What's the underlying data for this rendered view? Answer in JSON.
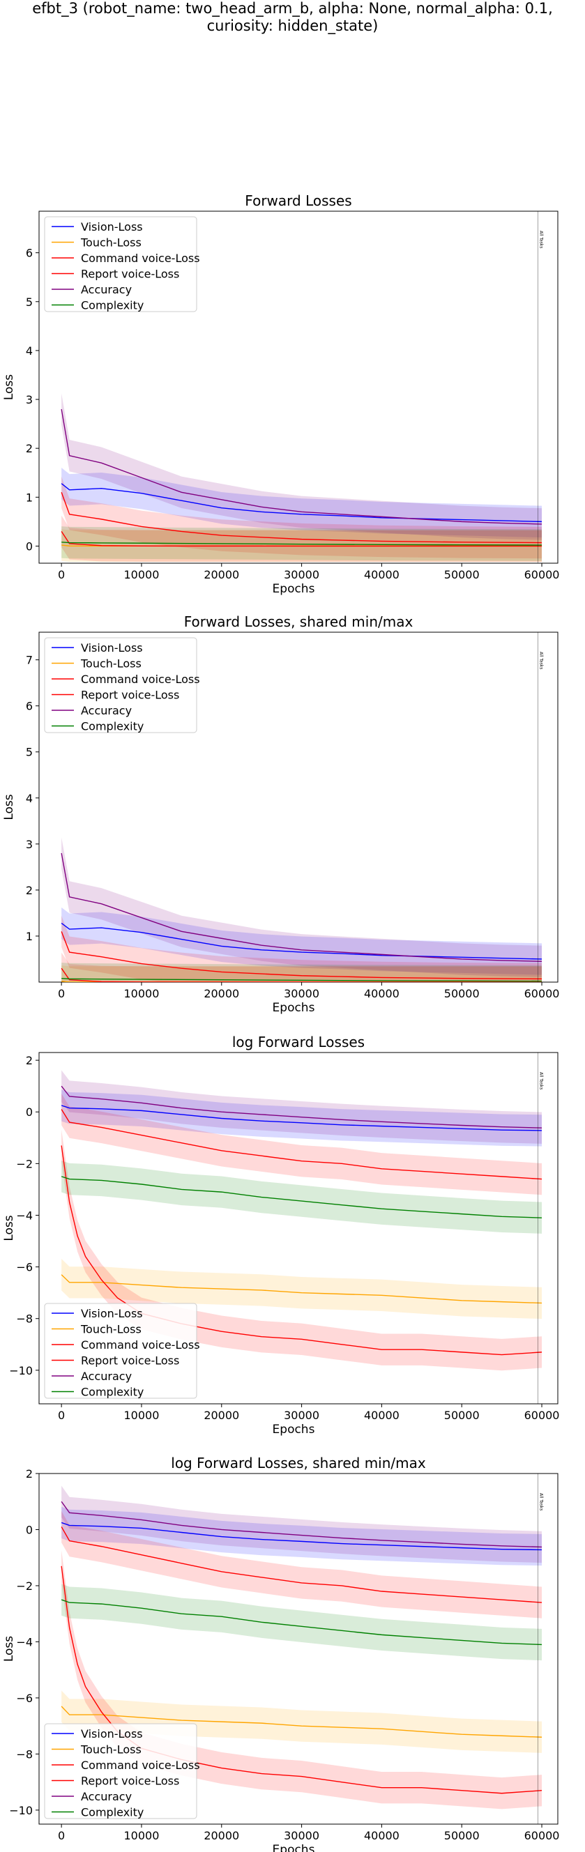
{
  "suptitle": {
    "line1": "efbt_3 (robot_name: two_head_arm_b, alpha: None, normal_alpha: 0.1,",
    "line2": "curiosity: hidden_state)"
  },
  "colors": {
    "Vision-Loss": "#0000ff",
    "Touch-Loss": "#ffa500",
    "Command voice-Loss": "#ff0000",
    "Report voice-Loss": "#ff0000",
    "Accuracy": "#800080",
    "Complexity": "#008000"
  },
  "chart_data": [
    {
      "type": "line",
      "title": "Forward Losses",
      "xlabel": "Epochs",
      "ylabel": "Loss",
      "xlim": [
        -2800,
        62000
      ],
      "ylim": [
        -0.35,
        6.85
      ],
      "xticks": [
        0,
        10000,
        20000,
        30000,
        40000,
        50000,
        60000
      ],
      "yticks": [
        0,
        1,
        2,
        3,
        4,
        5,
        6
      ],
      "legend": "upper-left",
      "vline": {
        "x": 59500,
        "label": "All Tasks"
      },
      "series": [
        {
          "name": "Vision-Loss",
          "x": [
            0,
            1000,
            5000,
            10000,
            15000,
            20000,
            25000,
            30000,
            35000,
            40000,
            45000,
            50000,
            55000,
            60000
          ],
          "y": [
            1.28,
            1.15,
            1.18,
            1.08,
            0.93,
            0.78,
            0.7,
            0.65,
            0.62,
            0.58,
            0.56,
            0.54,
            0.52,
            0.5
          ]
        },
        {
          "name": "Touch-Loss",
          "x": [
            0,
            1000,
            5000,
            10000,
            20000,
            30000,
            40000,
            50000,
            60000
          ],
          "y": [
            0.02,
            0.003,
            0.002,
            0.002,
            0.002,
            0.001,
            0.001,
            0.001,
            0.001
          ]
        },
        {
          "name": "Command voice-Loss",
          "x": [
            0,
            1000,
            5000,
            10000,
            15000,
            20000,
            25000,
            30000,
            35000,
            40000,
            45000,
            50000,
            55000,
            60000
          ],
          "y": [
            0.3,
            0.05,
            0.01,
            0.003,
            0.001,
            0.001,
            0.001,
            0.0002,
            0.0002,
            0.0001,
            0.0001,
            0.0001,
            0.0001,
            0.0001
          ]
        },
        {
          "name": "Report voice-Loss",
          "x": [
            0,
            1000,
            5000,
            10000,
            15000,
            20000,
            25000,
            30000,
            35000,
            40000,
            45000,
            50000,
            55000,
            60000
          ],
          "y": [
            1.1,
            0.65,
            0.55,
            0.4,
            0.3,
            0.22,
            0.18,
            0.14,
            0.12,
            0.1,
            0.09,
            0.08,
            0.075,
            0.07
          ]
        },
        {
          "name": "Accuracy",
          "x": [
            0,
            1000,
            5000,
            10000,
            15000,
            20000,
            25000,
            30000,
            35000,
            40000,
            45000,
            50000,
            55000,
            60000
          ],
          "y": [
            2.8,
            1.85,
            1.7,
            1.4,
            1.1,
            0.95,
            0.8,
            0.7,
            0.65,
            0.6,
            0.55,
            0.5,
            0.47,
            0.45
          ]
        },
        {
          "name": "Complexity",
          "x": [
            0,
            1000,
            5000,
            10000,
            20000,
            30000,
            40000,
            50000,
            60000
          ],
          "y": [
            0.08,
            0.07,
            0.065,
            0.06,
            0.05,
            0.04,
            0.03,
            0.025,
            0.02
          ]
        }
      ]
    },
    {
      "type": "line",
      "title": "Forward Losses, shared min/max",
      "xlabel": "Epochs",
      "ylabel": "Loss",
      "xlim": [
        -2800,
        62000
      ],
      "ylim": [
        0.0,
        7.6
      ],
      "xticks": [
        0,
        10000,
        20000,
        30000,
        40000,
        50000,
        60000
      ],
      "yticks": [
        1,
        2,
        3,
        4,
        5,
        6,
        7
      ],
      "legend": "upper-left",
      "vline": {
        "x": 59500,
        "label": "All Tasks"
      },
      "series": [
        {
          "name": "Vision-Loss",
          "x": [
            0,
            1000,
            5000,
            10000,
            15000,
            20000,
            25000,
            30000,
            35000,
            40000,
            45000,
            50000,
            55000,
            60000
          ],
          "y": [
            1.28,
            1.15,
            1.18,
            1.08,
            0.93,
            0.78,
            0.7,
            0.65,
            0.62,
            0.58,
            0.56,
            0.54,
            0.52,
            0.5
          ]
        },
        {
          "name": "Touch-Loss",
          "x": [
            0,
            1000,
            5000,
            10000,
            20000,
            30000,
            40000,
            50000,
            60000
          ],
          "y": [
            0.02,
            0.003,
            0.002,
            0.002,
            0.002,
            0.001,
            0.001,
            0.001,
            0.001
          ]
        },
        {
          "name": "Command voice-Loss",
          "x": [
            0,
            1000,
            5000,
            10000,
            15000,
            20000,
            25000,
            30000,
            35000,
            40000,
            45000,
            50000,
            55000,
            60000
          ],
          "y": [
            0.3,
            0.05,
            0.01,
            0.003,
            0.001,
            0.001,
            0.001,
            0.0002,
            0.0002,
            0.0001,
            0.0001,
            0.0001,
            0.0001,
            0.0001
          ]
        },
        {
          "name": "Report voice-Loss",
          "x": [
            0,
            1000,
            5000,
            10000,
            15000,
            20000,
            25000,
            30000,
            35000,
            40000,
            45000,
            50000,
            55000,
            60000
          ],
          "y": [
            1.1,
            0.65,
            0.55,
            0.4,
            0.3,
            0.22,
            0.18,
            0.14,
            0.12,
            0.1,
            0.09,
            0.08,
            0.075,
            0.07
          ]
        },
        {
          "name": "Accuracy",
          "x": [
            0,
            1000,
            5000,
            10000,
            15000,
            20000,
            25000,
            30000,
            35000,
            40000,
            45000,
            50000,
            55000,
            60000
          ],
          "y": [
            2.8,
            1.85,
            1.7,
            1.4,
            1.1,
            0.95,
            0.8,
            0.7,
            0.65,
            0.6,
            0.55,
            0.5,
            0.47,
            0.45
          ]
        },
        {
          "name": "Complexity",
          "x": [
            0,
            1000,
            5000,
            10000,
            20000,
            30000,
            40000,
            50000,
            60000
          ],
          "y": [
            0.08,
            0.07,
            0.065,
            0.06,
            0.05,
            0.04,
            0.03,
            0.025,
            0.02
          ]
        }
      ]
    },
    {
      "type": "line",
      "title": "log Forward Losses",
      "xlabel": "Epochs",
      "ylabel": "Loss",
      "xlim": [
        -2800,
        62000
      ],
      "ylim": [
        -11.3,
        2.3
      ],
      "xticks": [
        0,
        10000,
        20000,
        30000,
        40000,
        50000,
        60000
      ],
      "yticks": [
        2,
        0,
        -2,
        -4,
        -6,
        -8,
        -10
      ],
      "legend": "lower-left",
      "vline": {
        "x": 59500,
        "label": "All Tasks"
      },
      "series": [
        {
          "name": "Vision-Loss",
          "x": [
            0,
            1000,
            5000,
            10000,
            15000,
            20000,
            25000,
            30000,
            35000,
            40000,
            45000,
            50000,
            55000,
            60000
          ],
          "y": [
            0.25,
            0.15,
            0.12,
            0.05,
            -0.1,
            -0.25,
            -0.35,
            -0.42,
            -0.5,
            -0.55,
            -0.6,
            -0.65,
            -0.7,
            -0.72
          ]
        },
        {
          "name": "Touch-Loss",
          "x": [
            0,
            1000,
            5000,
            10000,
            15000,
            20000,
            25000,
            30000,
            35000,
            40000,
            45000,
            50000,
            55000,
            60000
          ],
          "y": [
            -6.3,
            -6.6,
            -6.6,
            -6.7,
            -6.8,
            -6.85,
            -6.9,
            -7.0,
            -7.05,
            -7.1,
            -7.2,
            -7.3,
            -7.35,
            -7.4
          ]
        },
        {
          "name": "Command voice-Loss",
          "x": [
            0,
            1000,
            2000,
            3000,
            5000,
            7000,
            10000,
            15000,
            20000,
            25000,
            30000,
            35000,
            40000,
            45000,
            50000,
            55000,
            60000
          ],
          "y": [
            -1.3,
            -3.5,
            -4.8,
            -5.6,
            -6.5,
            -7.2,
            -7.8,
            -8.2,
            -8.5,
            -8.7,
            -8.8,
            -9.0,
            -9.2,
            -9.2,
            -9.3,
            -9.4,
            -9.3
          ]
        },
        {
          "name": "Report voice-Loss",
          "x": [
            0,
            1000,
            5000,
            10000,
            15000,
            20000,
            25000,
            30000,
            35000,
            40000,
            45000,
            50000,
            55000,
            60000
          ],
          "y": [
            0.1,
            -0.4,
            -0.6,
            -0.9,
            -1.2,
            -1.5,
            -1.7,
            -1.9,
            -2.0,
            -2.2,
            -2.3,
            -2.4,
            -2.5,
            -2.6
          ]
        },
        {
          "name": "Accuracy",
          "x": [
            0,
            1000,
            5000,
            10000,
            15000,
            20000,
            25000,
            30000,
            35000,
            40000,
            45000,
            50000,
            55000,
            60000
          ],
          "y": [
            1.0,
            0.6,
            0.5,
            0.35,
            0.15,
            0.0,
            -0.1,
            -0.2,
            -0.3,
            -0.38,
            -0.45,
            -0.52,
            -0.58,
            -0.62
          ]
        },
        {
          "name": "Complexity",
          "x": [
            0,
            1000,
            5000,
            10000,
            15000,
            20000,
            25000,
            30000,
            35000,
            40000,
            45000,
            50000,
            55000,
            60000
          ],
          "y": [
            -2.5,
            -2.6,
            -2.65,
            -2.8,
            -3.0,
            -3.1,
            -3.3,
            -3.45,
            -3.6,
            -3.75,
            -3.85,
            -3.95,
            -4.05,
            -4.1
          ]
        }
      ]
    },
    {
      "type": "line",
      "title": "log Forward Losses, shared min/max",
      "xlabel": "Epochs",
      "ylabel": "Loss",
      "xlim": [
        -2800,
        62000
      ],
      "ylim": [
        -10.5,
        2.0
      ],
      "xticks": [
        0,
        10000,
        20000,
        30000,
        40000,
        50000,
        60000
      ],
      "yticks": [
        2,
        0,
        -2,
        -4,
        -6,
        -8,
        -10
      ],
      "legend": "lower-left",
      "vline": {
        "x": 59500,
        "label": "All Tasks"
      },
      "series": [
        {
          "name": "Vision-Loss",
          "x": [
            0,
            1000,
            5000,
            10000,
            15000,
            20000,
            25000,
            30000,
            35000,
            40000,
            45000,
            50000,
            55000,
            60000
          ],
          "y": [
            0.25,
            0.15,
            0.12,
            0.05,
            -0.1,
            -0.25,
            -0.35,
            -0.42,
            -0.5,
            -0.55,
            -0.6,
            -0.65,
            -0.7,
            -0.72
          ]
        },
        {
          "name": "Touch-Loss",
          "x": [
            0,
            1000,
            5000,
            10000,
            15000,
            20000,
            25000,
            30000,
            35000,
            40000,
            45000,
            50000,
            55000,
            60000
          ],
          "y": [
            -6.3,
            -6.6,
            -6.6,
            -6.7,
            -6.8,
            -6.85,
            -6.9,
            -7.0,
            -7.05,
            -7.1,
            -7.2,
            -7.3,
            -7.35,
            -7.4
          ]
        },
        {
          "name": "Command voice-Loss",
          "x": [
            0,
            1000,
            2000,
            3000,
            5000,
            7000,
            10000,
            15000,
            20000,
            25000,
            30000,
            35000,
            40000,
            45000,
            50000,
            55000,
            60000
          ],
          "y": [
            -1.3,
            -3.5,
            -4.8,
            -5.6,
            -6.5,
            -7.2,
            -7.8,
            -8.2,
            -8.5,
            -8.7,
            -8.8,
            -9.0,
            -9.2,
            -9.2,
            -9.3,
            -9.4,
            -9.3
          ]
        },
        {
          "name": "Report voice-Loss",
          "x": [
            0,
            1000,
            5000,
            10000,
            15000,
            20000,
            25000,
            30000,
            35000,
            40000,
            45000,
            50000,
            55000,
            60000
          ],
          "y": [
            0.1,
            -0.4,
            -0.6,
            -0.9,
            -1.2,
            -1.5,
            -1.7,
            -1.9,
            -2.0,
            -2.2,
            -2.3,
            -2.4,
            -2.5,
            -2.6
          ]
        },
        {
          "name": "Accuracy",
          "x": [
            0,
            1000,
            5000,
            10000,
            15000,
            20000,
            25000,
            30000,
            35000,
            40000,
            45000,
            50000,
            55000,
            60000
          ],
          "y": [
            1.0,
            0.6,
            0.5,
            0.35,
            0.15,
            0.0,
            -0.1,
            -0.2,
            -0.3,
            -0.38,
            -0.45,
            -0.52,
            -0.58,
            -0.62
          ]
        },
        {
          "name": "Complexity",
          "x": [
            0,
            1000,
            5000,
            10000,
            15000,
            20000,
            25000,
            30000,
            35000,
            40000,
            45000,
            50000,
            55000,
            60000
          ],
          "y": [
            -2.5,
            -2.6,
            -2.65,
            -2.8,
            -3.0,
            -3.1,
            -3.3,
            -3.45,
            -3.6,
            -3.75,
            -3.85,
            -3.95,
            -4.05,
            -4.1
          ]
        }
      ]
    }
  ]
}
